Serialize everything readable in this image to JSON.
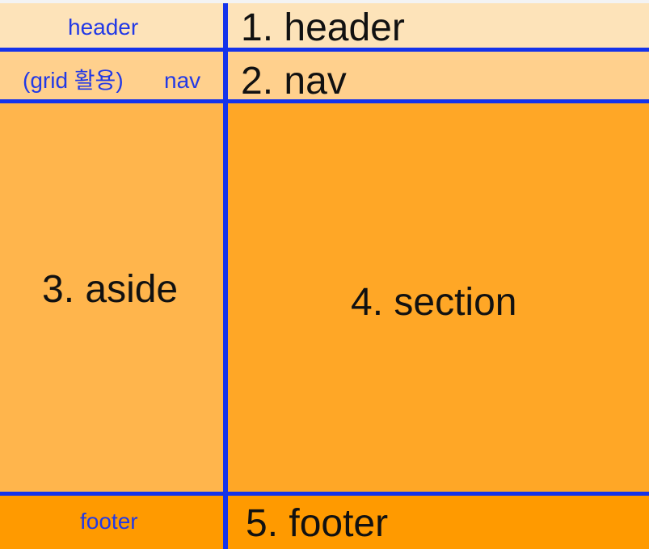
{
  "labels": {
    "left_header": "header",
    "left_nav_prefix": "(grid 활용)",
    "left_nav": "nav",
    "left_footer": "footer",
    "right_header": "1. header",
    "right_nav": "2. nav",
    "aside": "3. aside",
    "section": "4. section",
    "footer": "5. footer"
  },
  "colors": {
    "header_bg": "#fde3b9",
    "nav_bg": "#ffd08d",
    "aside_bg": "#ffb54c",
    "section_bg": "#ffa726",
    "footer_bg": "#ff9a00",
    "divider": "#1533ea",
    "left_label": "#2239e6",
    "main_text": "#111111"
  }
}
